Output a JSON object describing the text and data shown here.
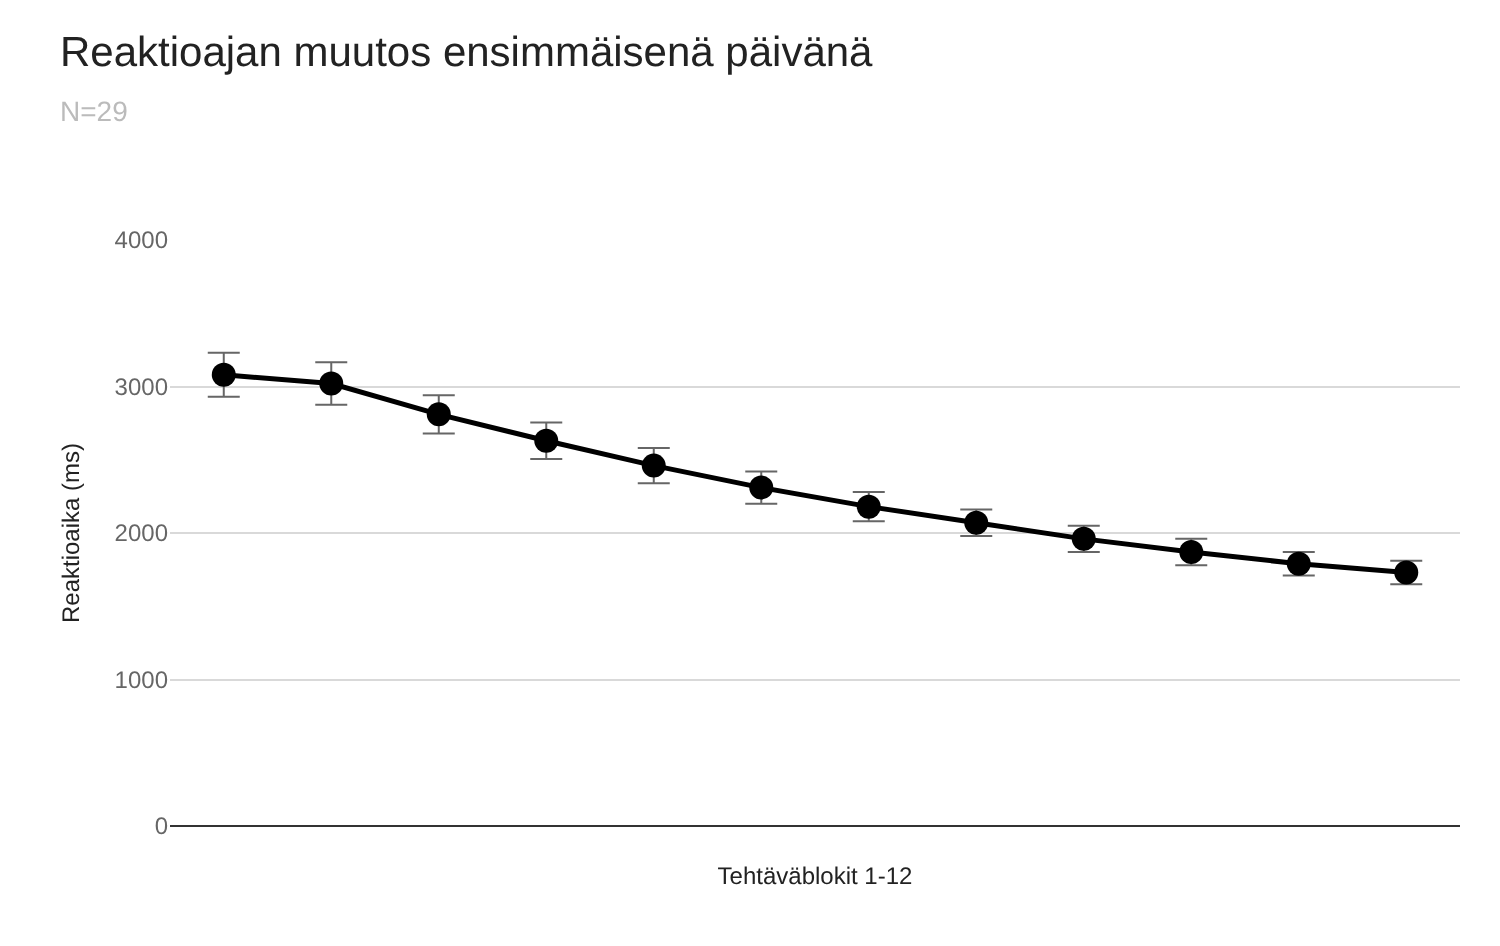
{
  "chart_data": {
    "type": "line",
    "title": "Reaktioajan muutos ensimmäisenä päivänä",
    "subtitle": "N=29",
    "xlabel": "Tehtäväblokit 1-12",
    "ylabel": "Reaktioaika (ms)",
    "categories": [
      null,
      null,
      null,
      null,
      null,
      null,
      null,
      null,
      null,
      null,
      null,
      null
    ],
    "series": [
      {
        "color": "#000000",
        "values": [
          3080,
          3020,
          2810,
          2630,
          2460,
          2310,
          2180,
          2070,
          1960,
          1870,
          1790,
          1730
        ],
        "errors": [
          150,
          145,
          130,
          125,
          120,
          110,
          100,
          90,
          90,
          90,
          80,
          80
        ]
      }
    ],
    "ylim": [
      0,
      4000
    ],
    "yticks": [
      0,
      1000,
      2000,
      3000,
      4000
    ],
    "grid": "y",
    "marker": "circle",
    "line_style": "solid"
  }
}
